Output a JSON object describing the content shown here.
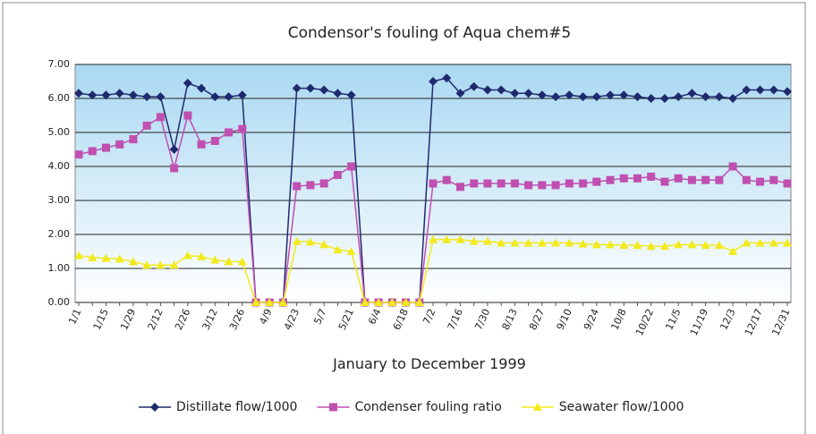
{
  "chart_data": {
    "type": "line",
    "title": "Condensor's fouling of Aqua chem#5",
    "x_label": "January to December 1999",
    "categories": [
      "1/1",
      null,
      "1/15",
      null,
      "1/29",
      null,
      "2/12",
      null,
      "2/26",
      null,
      "3/12",
      null,
      "3/26",
      null,
      "4/9",
      null,
      "4/23",
      null,
      "5/7",
      null,
      "5/21",
      null,
      "6/4",
      null,
      "6/18",
      null,
      "7/2",
      null,
      "7/16",
      null,
      "7/30",
      null,
      "8/13",
      null,
      "8/27",
      null,
      "9/10",
      null,
      "9/24",
      null,
      "10/8",
      null,
      "10/22",
      null,
      "11/5",
      null,
      "11/19",
      null,
      "12/3",
      null,
      "12/17",
      null,
      "12/31"
    ],
    "series": [
      {
        "name": "Distillate flow/1000",
        "color": "#1f2a6e",
        "marker": "diamond",
        "values": [
          6.15,
          6.1,
          6.1,
          6.15,
          6.1,
          6.05,
          6.05,
          4.5,
          6.45,
          6.3,
          6.05,
          6.05,
          6.1,
          0,
          0,
          0,
          6.3,
          6.3,
          6.25,
          6.15,
          6.1,
          0,
          0,
          0,
          0,
          0,
          6.5,
          6.6,
          6.15,
          6.35,
          6.25,
          6.25,
          6.15,
          6.15,
          6.1,
          6.05,
          6.1,
          6.05,
          6.05,
          6.1,
          6.1,
          6.05,
          6.0,
          6.0,
          6.05,
          6.15,
          6.05,
          6.05,
          6.0,
          6.25,
          6.25,
          6.25,
          6.2
        ]
      },
      {
        "name": "Condenser fouling ratio",
        "color": "#c04fb0",
        "marker": "square",
        "values": [
          4.35,
          4.45,
          4.55,
          4.65,
          4.8,
          5.2,
          5.45,
          3.95,
          5.5,
          4.65,
          4.75,
          5.0,
          5.1,
          0,
          0,
          0,
          3.42,
          3.45,
          3.5,
          3.75,
          4.0,
          0,
          0,
          0,
          0,
          0,
          3.5,
          3.6,
          3.4,
          3.5,
          3.5,
          3.5,
          3.5,
          3.45,
          3.45,
          3.45,
          3.5,
          3.5,
          3.55,
          3.6,
          3.65,
          3.65,
          3.7,
          3.55,
          3.65,
          3.6,
          3.6,
          3.6,
          4.0,
          3.6,
          3.55,
          3.6,
          3.5
        ]
      },
      {
        "name": "Seawater flow/1000",
        "color": "#f2ea1c",
        "marker": "triangle",
        "values": [
          1.38,
          1.32,
          1.3,
          1.28,
          1.2,
          1.1,
          1.1,
          1.1,
          1.38,
          1.35,
          1.25,
          1.2,
          1.2,
          0,
          0,
          0,
          1.8,
          1.78,
          1.7,
          1.55,
          1.5,
          0,
          0,
          0,
          0,
          0,
          1.85,
          1.85,
          1.85,
          1.8,
          1.8,
          1.75,
          1.75,
          1.75,
          1.75,
          1.75,
          1.75,
          1.72,
          1.7,
          1.7,
          1.68,
          1.68,
          1.65,
          1.65,
          1.7,
          1.7,
          1.68,
          1.68,
          1.5,
          1.75,
          1.75,
          1.75,
          1.75
        ]
      }
    ],
    "ylim": [
      0,
      7
    ],
    "yticks": [
      {
        "value": 0,
        "label": "0.00"
      },
      {
        "value": 1,
        "label": "1.00"
      },
      {
        "value": 2,
        "label": "2.00"
      },
      {
        "value": 3,
        "label": "3.00"
      },
      {
        "value": 4,
        "label": "4.00"
      },
      {
        "value": 5,
        "label": "5.00"
      },
      {
        "value": 6,
        "label": "6.00"
      },
      {
        "value": 7,
        "label": "7.00"
      }
    ],
    "grid": true,
    "legend": "bottom"
  }
}
